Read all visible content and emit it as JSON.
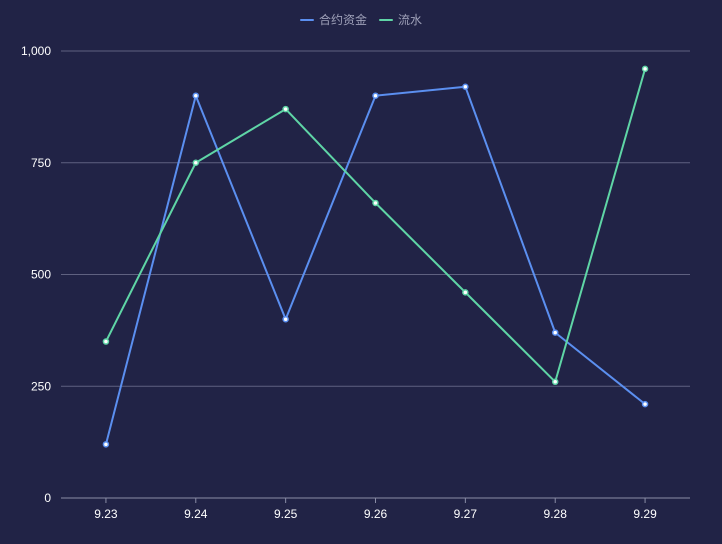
{
  "chart_data": {
    "type": "line",
    "categories": [
      "9.23",
      "9.24",
      "9.25",
      "9.26",
      "9.27",
      "9.28",
      "9.29"
    ],
    "series": [
      {
        "name": "合约资金",
        "color": "#5b8ff0",
        "values": [
          120,
          900,
          400,
          900,
          920,
          370,
          210
        ]
      },
      {
        "name": "流水",
        "color": "#5fd5a6",
        "values": [
          350,
          750,
          870,
          660,
          460,
          260,
          960
        ]
      }
    ],
    "ylim": [
      0,
      1000
    ],
    "yticks": [
      "0",
      "250",
      "500",
      "750",
      "1,000"
    ],
    "ytick_values": [
      0,
      250,
      500,
      750,
      1000
    ],
    "grid": true,
    "legend_position": "top-center",
    "title": "",
    "xlabel": "",
    "ylabel": "",
    "colors": {
      "background": "#212346",
      "grid": "#5f6180",
      "axis_text": "#ffffff",
      "legend_text": "#9ea0b8",
      "marker_fill": "#ffffff"
    }
  }
}
